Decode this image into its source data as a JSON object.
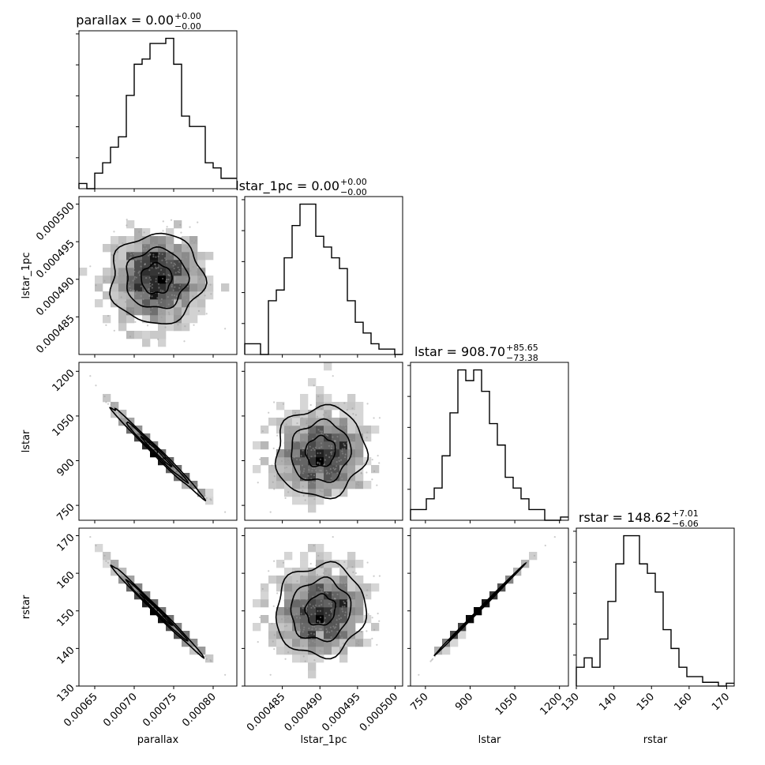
{
  "chart_data": {
    "type": "corner",
    "parameters": [
      "parallax",
      "lstar_1pc",
      "lstar",
      "rstar"
    ],
    "titles": [
      {
        "param": "parallax",
        "prefix": "parallax = ",
        "value": "0.00",
        "plus": "+0.00",
        "minus": "−0.00"
      },
      {
        "param": "lstar_1pc",
        "prefix": "lstar_1pc = ",
        "value": "0.00",
        "plus": "+0.00",
        "minus": "−0.00"
      },
      {
        "param": "lstar",
        "prefix": "lstar = ",
        "value": "908.70",
        "plus": "+85.65",
        "minus": "−73.38"
      },
      {
        "param": "rstar",
        "prefix": "rstar = ",
        "value": "148.62",
        "plus": "+7.01",
        "minus": "−6.06"
      }
    ],
    "axes": {
      "parallax": {
        "range": [
          0.00063,
          0.00083
        ],
        "ticks": [
          0.00065,
          0.0007,
          0.00075,
          0.0008
        ],
        "tick_labels": [
          "0.00065",
          "0.00070",
          "0.00075",
          "0.00080"
        ],
        "label": "parallax"
      },
      "lstar_1pc": {
        "range": [
          0.00048,
          0.000501
        ],
        "ticks": [
          0.000485,
          0.00049,
          0.000495,
          0.0005
        ],
        "tick_labels": [
          "0.000485",
          "0.000490",
          "0.000495",
          "0.000500"
        ],
        "label": "lstar_1pc"
      },
      "lstar": {
        "range": [
          700,
          1230
        ],
        "ticks": [
          750,
          900,
          1050,
          1200
        ],
        "tick_labels": [
          "750",
          "900",
          "1050",
          "1200"
        ],
        "label": "lstar"
      },
      "rstar": {
        "range": [
          130,
          172
        ],
        "ticks": [
          130,
          140,
          150,
          160,
          170
        ],
        "tick_labels": [
          "130",
          "140",
          "150",
          "160",
          "170"
        ],
        "label": "rstar"
      }
    },
    "histograms": {
      "parallax": [
        1,
        0,
        3,
        5,
        8,
        10,
        18,
        24,
        25,
        28,
        28,
        29,
        24,
        14,
        12,
        12,
        5,
        4,
        2,
        2
      ],
      "lstar_1pc": [
        1,
        1,
        0,
        5,
        6,
        9,
        12,
        14,
        14,
        11,
        10,
        9,
        8,
        5,
        3,
        2,
        1,
        0.5,
        0.5,
        0
      ],
      "lstar": [
        1,
        1,
        2,
        3,
        6,
        10,
        14,
        13,
        14,
        12,
        9,
        7,
        4,
        3,
        2,
        1,
        1,
        0,
        0,
        0.3
      ],
      "rstar": [
        2,
        3,
        2,
        5,
        9,
        13,
        16,
        16,
        13,
        12,
        10,
        6,
        4,
        2,
        1,
        1,
        0.4,
        0.4,
        0,
        0.3
      ]
    },
    "grid": false,
    "legend": "none"
  }
}
